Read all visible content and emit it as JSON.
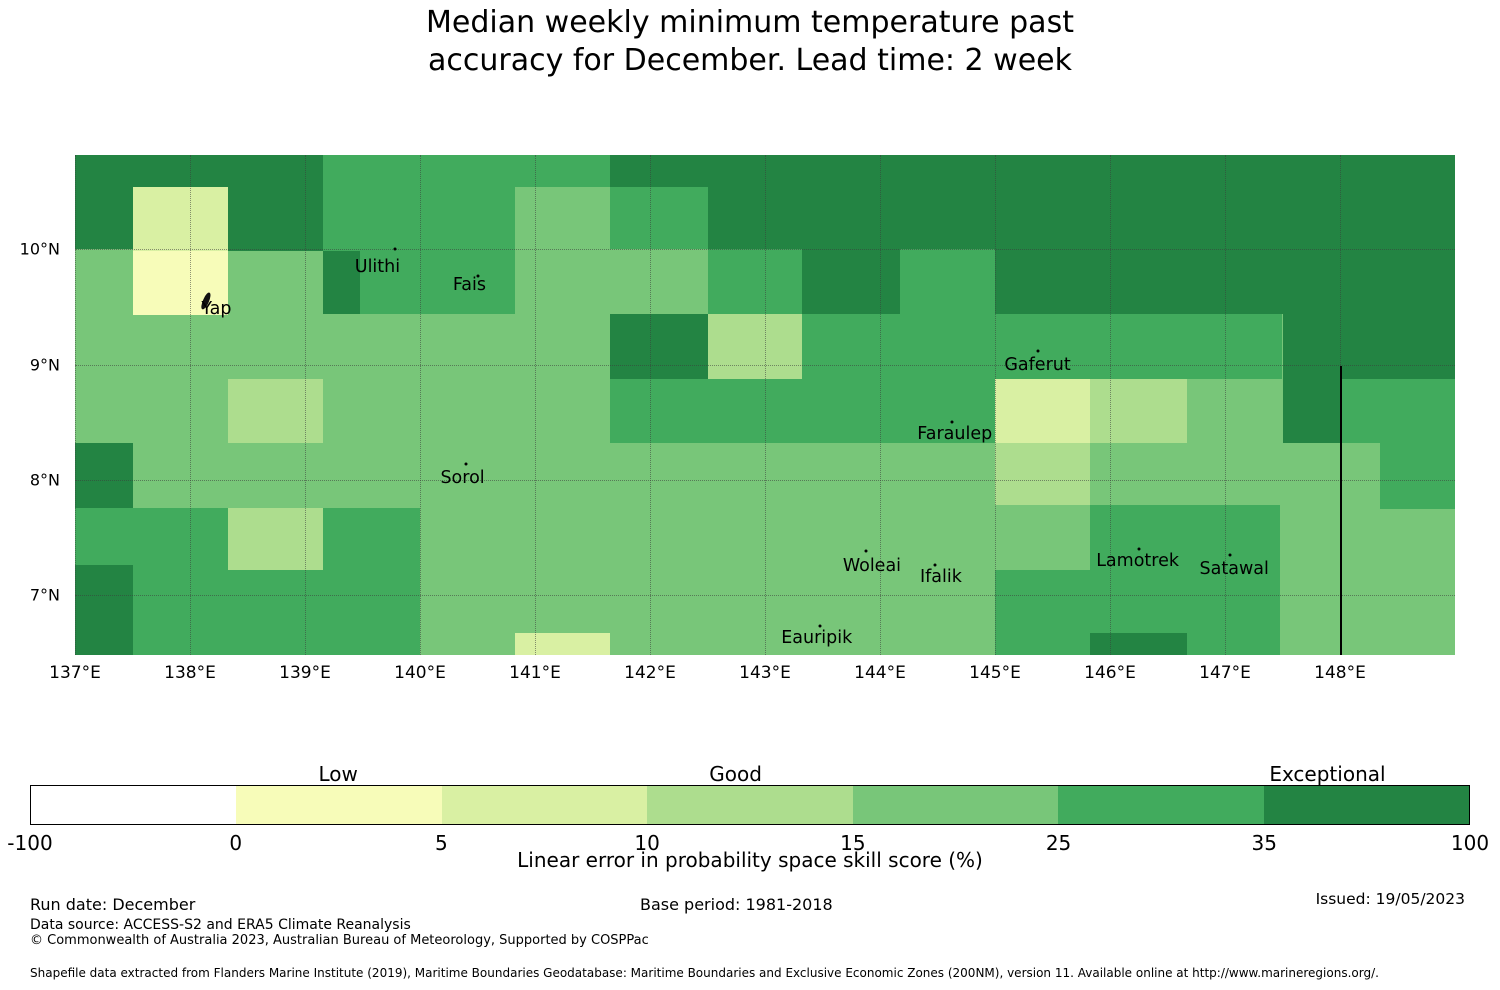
{
  "title": {
    "line1": "Median weekly minimum temperature past",
    "line2": "accuracy for December. Lead time: 2 week"
  },
  "footer": {
    "run_date": "Run date: December",
    "base_period": "Base period: 1981-2018",
    "issued": "Issued: 19/05/2023",
    "data_source": "Data source: ACCESS-S2 and ERA5 Climate Reanalysis",
    "copyright": "© Commonwealth of Australia 2023, Australian Bureau of Meteorology, Supported by COSPPac",
    "shapefile": "Shapefile data extracted from Flanders Marine Institute (2019), Maritime Boundaries Geodatabase: Maritime Boundaries and Exclusive Economic Zones (200NM), version 11. Available online at http://www.marineregions.org/."
  },
  "chart_data": {
    "type": "heatmap",
    "title": "Median weekly minimum temperature past accuracy for December. Lead time: 2 week",
    "colorbar_label": "Linear error in probability space skill score (%)",
    "lon_range": [
      137,
      149
    ],
    "lat_range": [
      6.48,
      10.82
    ],
    "grid_on": true,
    "x_ticks": [
      {
        "lon": 137,
        "label": "137°E"
      },
      {
        "lon": 138,
        "label": "138°E"
      },
      {
        "lon": 139,
        "label": "139°E"
      },
      {
        "lon": 140,
        "label": "140°E"
      },
      {
        "lon": 141,
        "label": "141°E"
      },
      {
        "lon": 142,
        "label": "142°E"
      },
      {
        "lon": 143,
        "label": "143°E"
      },
      {
        "lon": 144,
        "label": "144°E"
      },
      {
        "lon": 145,
        "label": "145°E"
      },
      {
        "lon": 146,
        "label": "146°E"
      },
      {
        "lon": 147,
        "label": "147°E"
      },
      {
        "lon": 148,
        "label": "148°E"
      }
    ],
    "y_ticks": [
      {
        "lat": 10,
        "label": "10°N"
      },
      {
        "lat": 9,
        "label": "9°N"
      },
      {
        "lat": 8,
        "label": "8°N"
      },
      {
        "lat": 7,
        "label": "7°N"
      }
    ],
    "skill_bins": [
      {
        "range": "-100–0",
        "color": "#ffffff"
      },
      {
        "range": "0–5",
        "color": "#f7fcb9",
        "category": "Low"
      },
      {
        "range": "5–10",
        "color": "#d9f0a3"
      },
      {
        "range": "10–15",
        "color": "#addd8e",
        "category": "Good"
      },
      {
        "range": "15–25",
        "color": "#78c679"
      },
      {
        "range": "25–35",
        "color": "#41ab5d"
      },
      {
        "range": "35–100",
        "color": "#238443",
        "category": "Exceptional"
      }
    ],
    "base_bin": "15–25",
    "cells": [
      {
        "lon": [
          139.16,
          140.83
        ],
        "lat": [
          9.44,
          10.82
        ],
        "bin": "25–35"
      },
      {
        "lon": [
          140.83,
          141.65
        ],
        "lat": [
          10.54,
          10.82
        ],
        "bin": "25–35"
      },
      {
        "lon": [
          141.65,
          142.5
        ],
        "lat": [
          10.0,
          10.54
        ],
        "bin": "25–35"
      },
      {
        "lon": [
          142.5,
          143.32
        ],
        "lat": [
          9.44,
          10.0
        ],
        "bin": "25–35"
      },
      {
        "lon": [
          144.17,
          145.0
        ],
        "lat": [
          9.44,
          10.0
        ],
        "bin": "25–35"
      },
      {
        "lon": [
          143.32,
          147.5
        ],
        "lat": [
          8.88,
          9.44
        ],
        "bin": "25–35"
      },
      {
        "lon": [
          141.65,
          145.0
        ],
        "lat": [
          8.32,
          8.88
        ],
        "bin": "25–35"
      },
      {
        "lon": [
          148.01,
          149.0
        ],
        "lat": [
          8.32,
          8.88
        ],
        "bin": "25–35"
      },
      {
        "lon": [
          148.35,
          149.0
        ],
        "lat": [
          7.75,
          8.32
        ],
        "bin": "25–35"
      },
      {
        "lon": [
          137.0,
          140.0
        ],
        "lat": [
          6.48,
          7.76
        ],
        "bin": "25–35"
      },
      {
        "lon": [
          145.83,
          147.48
        ],
        "lat": [
          6.67,
          7.78
        ],
        "bin": "25–35"
      },
      {
        "lon": [
          145.0,
          145.83
        ],
        "lat": [
          6.48,
          7.22
        ],
        "bin": "25–35"
      },
      {
        "lon": [
          146.67,
          147.48
        ],
        "lat": [
          6.48,
          6.67
        ],
        "bin": "25–35"
      },
      {
        "lon": [
          137.0,
          137.5
        ],
        "lat": [
          10.0,
          10.82
        ],
        "bin": "35–100"
      },
      {
        "lon": [
          137.5,
          139.16
        ],
        "lat": [
          10.54,
          10.82
        ],
        "bin": "35–100"
      },
      {
        "lon": [
          138.33,
          139.16
        ],
        "lat": [
          9.99,
          10.54
        ],
        "bin": "35–100"
      },
      {
        "lon": [
          139.16,
          139.48
        ],
        "lat": [
          9.44,
          9.99
        ],
        "bin": "35–100"
      },
      {
        "lon": [
          141.65,
          149.0
        ],
        "lat": [
          10.54,
          10.82
        ],
        "bin": "35–100"
      },
      {
        "lon": [
          142.5,
          149.0
        ],
        "lat": [
          10.0,
          10.54
        ],
        "bin": "35–100"
      },
      {
        "lon": [
          143.32,
          144.17
        ],
        "lat": [
          9.44,
          10.0
        ],
        "bin": "35–100"
      },
      {
        "lon": [
          145.0,
          149.0
        ],
        "lat": [
          9.44,
          10.0
        ],
        "bin": "35–100"
      },
      {
        "lon": [
          141.65,
          142.5
        ],
        "lat": [
          8.88,
          9.44
        ],
        "bin": "35–100"
      },
      {
        "lon": [
          147.5,
          149.0
        ],
        "lat": [
          8.88,
          9.44
        ],
        "bin": "35–100"
      },
      {
        "lon": [
          147.5,
          148.01
        ],
        "lat": [
          8.32,
          8.88
        ],
        "bin": "35–100"
      },
      {
        "lon": [
          137.0,
          137.5
        ],
        "lat": [
          7.76,
          8.32
        ],
        "bin": "35–100"
      },
      {
        "lon": [
          137.0,
          137.5
        ],
        "lat": [
          6.48,
          7.26
        ],
        "bin": "35–100"
      },
      {
        "lon": [
          145.83,
          146.67
        ],
        "lat": [
          6.48,
          6.67
        ],
        "bin": "35–100"
      },
      {
        "lon": [
          142.5,
          143.32
        ],
        "lat": [
          8.88,
          9.44
        ],
        "bin": "10–15"
      },
      {
        "lon": [
          138.33,
          139.16
        ],
        "lat": [
          8.32,
          8.88
        ],
        "bin": "10–15"
      },
      {
        "lon": [
          145.0,
          145.83
        ],
        "lat": [
          7.78,
          8.32
        ],
        "bin": "10–15"
      },
      {
        "lon": [
          145.83,
          146.67
        ],
        "lat": [
          8.32,
          8.88
        ],
        "bin": "10–15"
      },
      {
        "lon": [
          138.33,
          139.16
        ],
        "lat": [
          7.22,
          7.76
        ],
        "bin": "10–15"
      },
      {
        "lon": [
          137.5,
          138.33
        ],
        "lat": [
          9.99,
          10.54
        ],
        "bin": "5–10"
      },
      {
        "lon": [
          145.0,
          145.83
        ],
        "lat": [
          8.32,
          8.88
        ],
        "bin": "5–10"
      },
      {
        "lon": [
          140.83,
          141.65
        ],
        "lat": [
          6.48,
          6.67
        ],
        "bin": "5–10"
      },
      {
        "lon": [
          137.5,
          138.33
        ],
        "lat": [
          9.43,
          9.99
        ],
        "bin": "0–5"
      }
    ],
    "islands": [
      {
        "name": "Yap",
        "label_lon": 138.23,
        "label_lat": 9.48,
        "marker_lon": 138.14,
        "marker_lat": 9.55,
        "marker": "blob"
      },
      {
        "name": "Ulithi",
        "label_lon": 139.63,
        "label_lat": 9.85,
        "marker_lon": 139.78,
        "marker_lat": 10.0,
        "marker": "dot"
      },
      {
        "name": "Fais",
        "label_lon": 140.43,
        "label_lat": 9.69,
        "marker_lon": 140.5,
        "marker_lat": 9.77,
        "marker": "dot"
      },
      {
        "name": "Sorol",
        "label_lon": 140.37,
        "label_lat": 8.02,
        "marker_lon": 140.4,
        "marker_lat": 8.14,
        "marker": "dot"
      },
      {
        "name": "Gaferut",
        "label_lon": 145.37,
        "label_lat": 9.0,
        "marker_lon": 145.37,
        "marker_lat": 9.12,
        "marker": "dot"
      },
      {
        "name": "Faraulep",
        "label_lon": 144.65,
        "label_lat": 8.4,
        "marker_lon": 144.63,
        "marker_lat": 8.5,
        "marker": "dot"
      },
      {
        "name": "Woleai",
        "label_lon": 143.93,
        "label_lat": 7.25,
        "marker_lon": 143.88,
        "marker_lat": 7.38,
        "marker": "dot"
      },
      {
        "name": "Ifalik",
        "label_lon": 144.53,
        "label_lat": 7.16,
        "marker_lon": 144.48,
        "marker_lat": 7.26,
        "marker": "dot"
      },
      {
        "name": "Eauripik",
        "label_lon": 143.45,
        "label_lat": 6.63,
        "marker_lon": 143.48,
        "marker_lat": 6.73,
        "marker": "dot"
      },
      {
        "name": "Lamotrek",
        "label_lon": 146.24,
        "label_lat": 7.3,
        "marker_lon": 146.25,
        "marker_lat": 7.4,
        "marker": "dot"
      },
      {
        "name": "Satawal",
        "label_lon": 147.08,
        "label_lat": 7.23,
        "marker_lon": 147.04,
        "marker_lat": 7.35,
        "marker": "dot"
      }
    ],
    "eez_boundary_line": {
      "lon": 148.01,
      "lat_top": 8.99,
      "lat_bottom": 6.48
    },
    "colorbar": {
      "tick_labels": [
        "-100",
        "0",
        "5",
        "10",
        "15",
        "25",
        "35",
        "100"
      ],
      "categories": [
        {
          "label": "Low",
          "position": 0.214
        },
        {
          "label": "Good",
          "position": 0.49
        },
        {
          "label": "Exceptional",
          "position": 0.901
        }
      ]
    }
  }
}
